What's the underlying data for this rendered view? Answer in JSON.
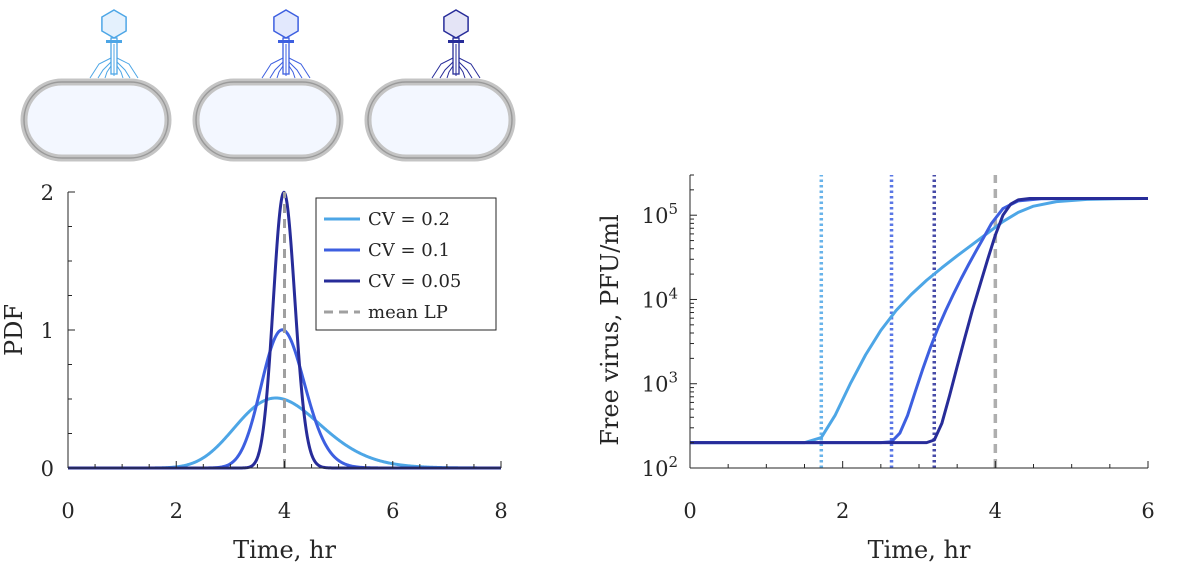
{
  "colors": {
    "light": "#4da6e6",
    "medium": "#3d5fe0",
    "dark": "#272c99",
    "mean": "#a0a0a0",
    "axis": "#262626",
    "cell_fill": "#f3f7ff",
    "cell_stroke": "#9a9a9a"
  },
  "icons": [
    "phage-on-cell-icon",
    "phage-on-cell-icon",
    "phage-on-cell-icon"
  ],
  "chart_data": [
    {
      "type": "line",
      "xlabel": "Time, hr",
      "ylabel": "PDF",
      "xlim": [
        0,
        8
      ],
      "ylim": [
        0,
        2
      ],
      "xticks": [
        "0",
        "2",
        "4",
        "6",
        "8"
      ],
      "yticks": [
        "0",
        "1",
        "2"
      ],
      "grid": false,
      "legend_position": "top-right",
      "series": [
        {
          "name": "CV = 0.2",
          "color_key": "light",
          "style": "solid",
          "distribution": "gamma",
          "mean": 4,
          "cv": 0.2
        },
        {
          "name": "CV = 0.1",
          "color_key": "medium",
          "style": "solid",
          "distribution": "gamma",
          "mean": 4,
          "cv": 0.1
        },
        {
          "name": "CV = 0.05",
          "color_key": "dark",
          "style": "solid",
          "distribution": "gamma",
          "mean": 4,
          "cv": 0.05
        },
        {
          "name": "mean LP",
          "color_key": "mean",
          "style": "dashed",
          "x_vertical": 4
        }
      ]
    },
    {
      "type": "line",
      "xlabel": "Time, hr",
      "ylabel": "Free virus, PFU/ml",
      "xlim": [
        0,
        6
      ],
      "ylim": [
        100,
        300000
      ],
      "yscale": "log",
      "xticks": [
        "0",
        "2",
        "4",
        "6"
      ],
      "yticks": [
        {
          "base": "10",
          "exp": "2",
          "value": 100
        },
        {
          "base": "10",
          "exp": "3",
          "value": 1000
        },
        {
          "base": "10",
          "exp": "4",
          "value": 10000
        },
        {
          "base": "10",
          "exp": "5",
          "value": 100000
        }
      ],
      "grid": false,
      "vertical_lines": [
        {
          "x": 1.72,
          "color_key": "light",
          "style": "dotted"
        },
        {
          "x": 2.64,
          "color_key": "medium",
          "style": "dotted"
        },
        {
          "x": 3.2,
          "color_key": "dark",
          "style": "dotted"
        },
        {
          "x": 4.0,
          "color_key": "mean",
          "style": "dashed"
        }
      ],
      "series": [
        {
          "color_key": "light",
          "x": [
            0,
            1.5,
            1.72,
            1.9,
            2.1,
            2.3,
            2.5,
            2.7,
            2.9,
            3.1,
            3.3,
            3.5,
            3.7,
            3.9,
            4.1,
            4.3,
            4.5,
            4.8,
            5.2,
            5.6,
            6.0
          ],
          "y": [
            200,
            200,
            230,
            420,
            1000,
            2200,
            4300,
            7400,
            11500,
            16900,
            23800,
            33000,
            45000,
            61500,
            84000,
            108000,
            128000,
            145000,
            154000,
            157000,
            158000
          ]
        },
        {
          "color_key": "medium",
          "x": [
            0,
            2.5,
            2.64,
            2.75,
            2.85,
            2.95,
            3.05,
            3.15,
            3.25,
            3.35,
            3.45,
            3.55,
            3.65,
            3.75,
            3.85,
            3.95,
            4.1,
            4.3,
            4.6,
            5.0,
            6.0
          ],
          "y": [
            200,
            200,
            205,
            260,
            420,
            800,
            1500,
            2700,
            4600,
            7400,
            11500,
            17500,
            26000,
            38000,
            55000,
            80000,
            120000,
            148000,
            157000,
            158000,
            158000
          ]
        },
        {
          "color_key": "dark",
          "x": [
            0,
            3.1,
            3.2,
            3.3,
            3.4,
            3.5,
            3.6,
            3.7,
            3.8,
            3.9,
            4.0,
            4.1,
            4.2,
            4.3,
            4.45,
            4.7,
            5.0,
            6.0
          ],
          "y": [
            200,
            200,
            215,
            340,
            720,
            1600,
            3500,
            7500,
            15000,
            30000,
            58000,
            100000,
            135000,
            152000,
            158000,
            158000,
            158000,
            158000
          ]
        }
      ]
    }
  ]
}
